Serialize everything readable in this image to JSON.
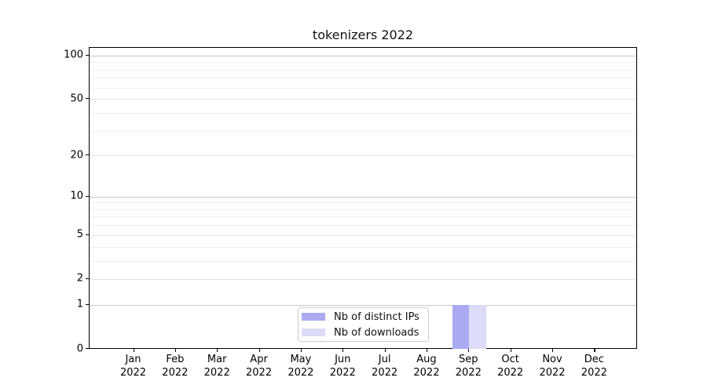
{
  "chart_data": {
    "type": "bar",
    "title": "tokenizers 2022",
    "categories": [
      {
        "month": "Jan",
        "year": "2022"
      },
      {
        "month": "Feb",
        "year": "2022"
      },
      {
        "month": "Mar",
        "year": "2022"
      },
      {
        "month": "Apr",
        "year": "2022"
      },
      {
        "month": "May",
        "year": "2022"
      },
      {
        "month": "Jun",
        "year": "2022"
      },
      {
        "month": "Jul",
        "year": "2022"
      },
      {
        "month": "Aug",
        "year": "2022"
      },
      {
        "month": "Sep",
        "year": "2022"
      },
      {
        "month": "Oct",
        "year": "2022"
      },
      {
        "month": "Nov",
        "year": "2022"
      },
      {
        "month": "Dec",
        "year": "2022"
      }
    ],
    "series": [
      {
        "name": "Nb of distinct IPs",
        "color": "#aaaaf2",
        "values": [
          0,
          0,
          0,
          0,
          0,
          0,
          0,
          0,
          1,
          0,
          0,
          0
        ]
      },
      {
        "name": "Nb of downloads",
        "color": "#dcdcf8",
        "values": [
          0,
          0,
          0,
          0,
          0,
          0,
          0,
          0,
          1,
          0,
          0,
          0
        ]
      }
    ],
    "y_axis": {
      "scale": "log1p",
      "tick_labels": [
        "100",
        "50",
        "20",
        "10",
        "5",
        "2",
        "1",
        "0"
      ],
      "tick_values": [
        100,
        50,
        20,
        10,
        5,
        2,
        1,
        0
      ],
      "major_gridline_values": [
        100,
        10,
        1
      ],
      "minor_gridline_values": [
        90,
        80,
        70,
        60,
        40,
        30,
        9,
        8,
        7,
        6,
        4,
        3
      ],
      "range": [
        0,
        113
      ]
    },
    "x_axis": {
      "tick_count": 12
    },
    "legend": {
      "position": "bottom-center-inside",
      "entries": [
        "Nb of distinct IPs",
        "Nb of downloads"
      ]
    },
    "grid": "horizontal",
    "colors": {
      "spine": "#000000",
      "grid_major": "#c8c8c8",
      "grid_minor_labeled": "#e3e3e3",
      "grid_minor": "#efefef",
      "background": "#ffffff"
    }
  }
}
